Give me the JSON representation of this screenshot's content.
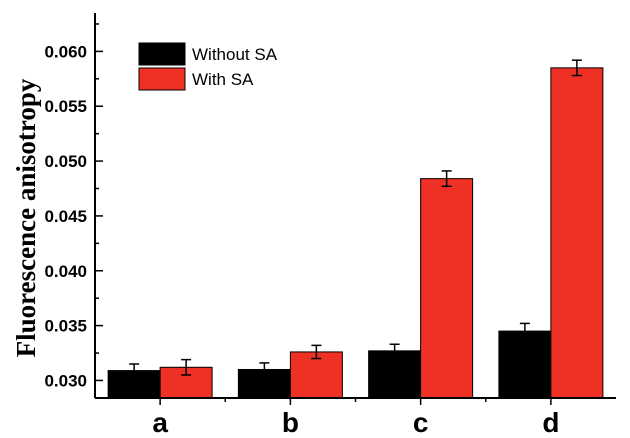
{
  "chart_data": {
    "type": "bar",
    "categories": [
      "a",
      "b",
      "c",
      "d"
    ],
    "series": [
      {
        "name": "Without SA",
        "color": "#000000",
        "values": [
          0.0309,
          0.031,
          0.0327,
          0.0345
        ],
        "errors": [
          0.0006,
          0.0006,
          0.0006,
          0.0007
        ]
      },
      {
        "name": "With SA",
        "color": "#ee3124",
        "values": [
          0.0312,
          0.0326,
          0.0484,
          0.0585
        ],
        "errors": [
          0.0007,
          0.0006,
          0.0007,
          0.0007
        ]
      }
    ],
    "xlabel": "",
    "ylabel": "Fluorescence anisotropy",
    "ylim": [
      0.0284,
      0.0635
    ],
    "yticks": [
      "0.030",
      "0.035",
      "0.040",
      "0.045",
      "0.050",
      "0.055",
      "0.060"
    ],
    "legend_position": "top-left",
    "grid": false
  }
}
